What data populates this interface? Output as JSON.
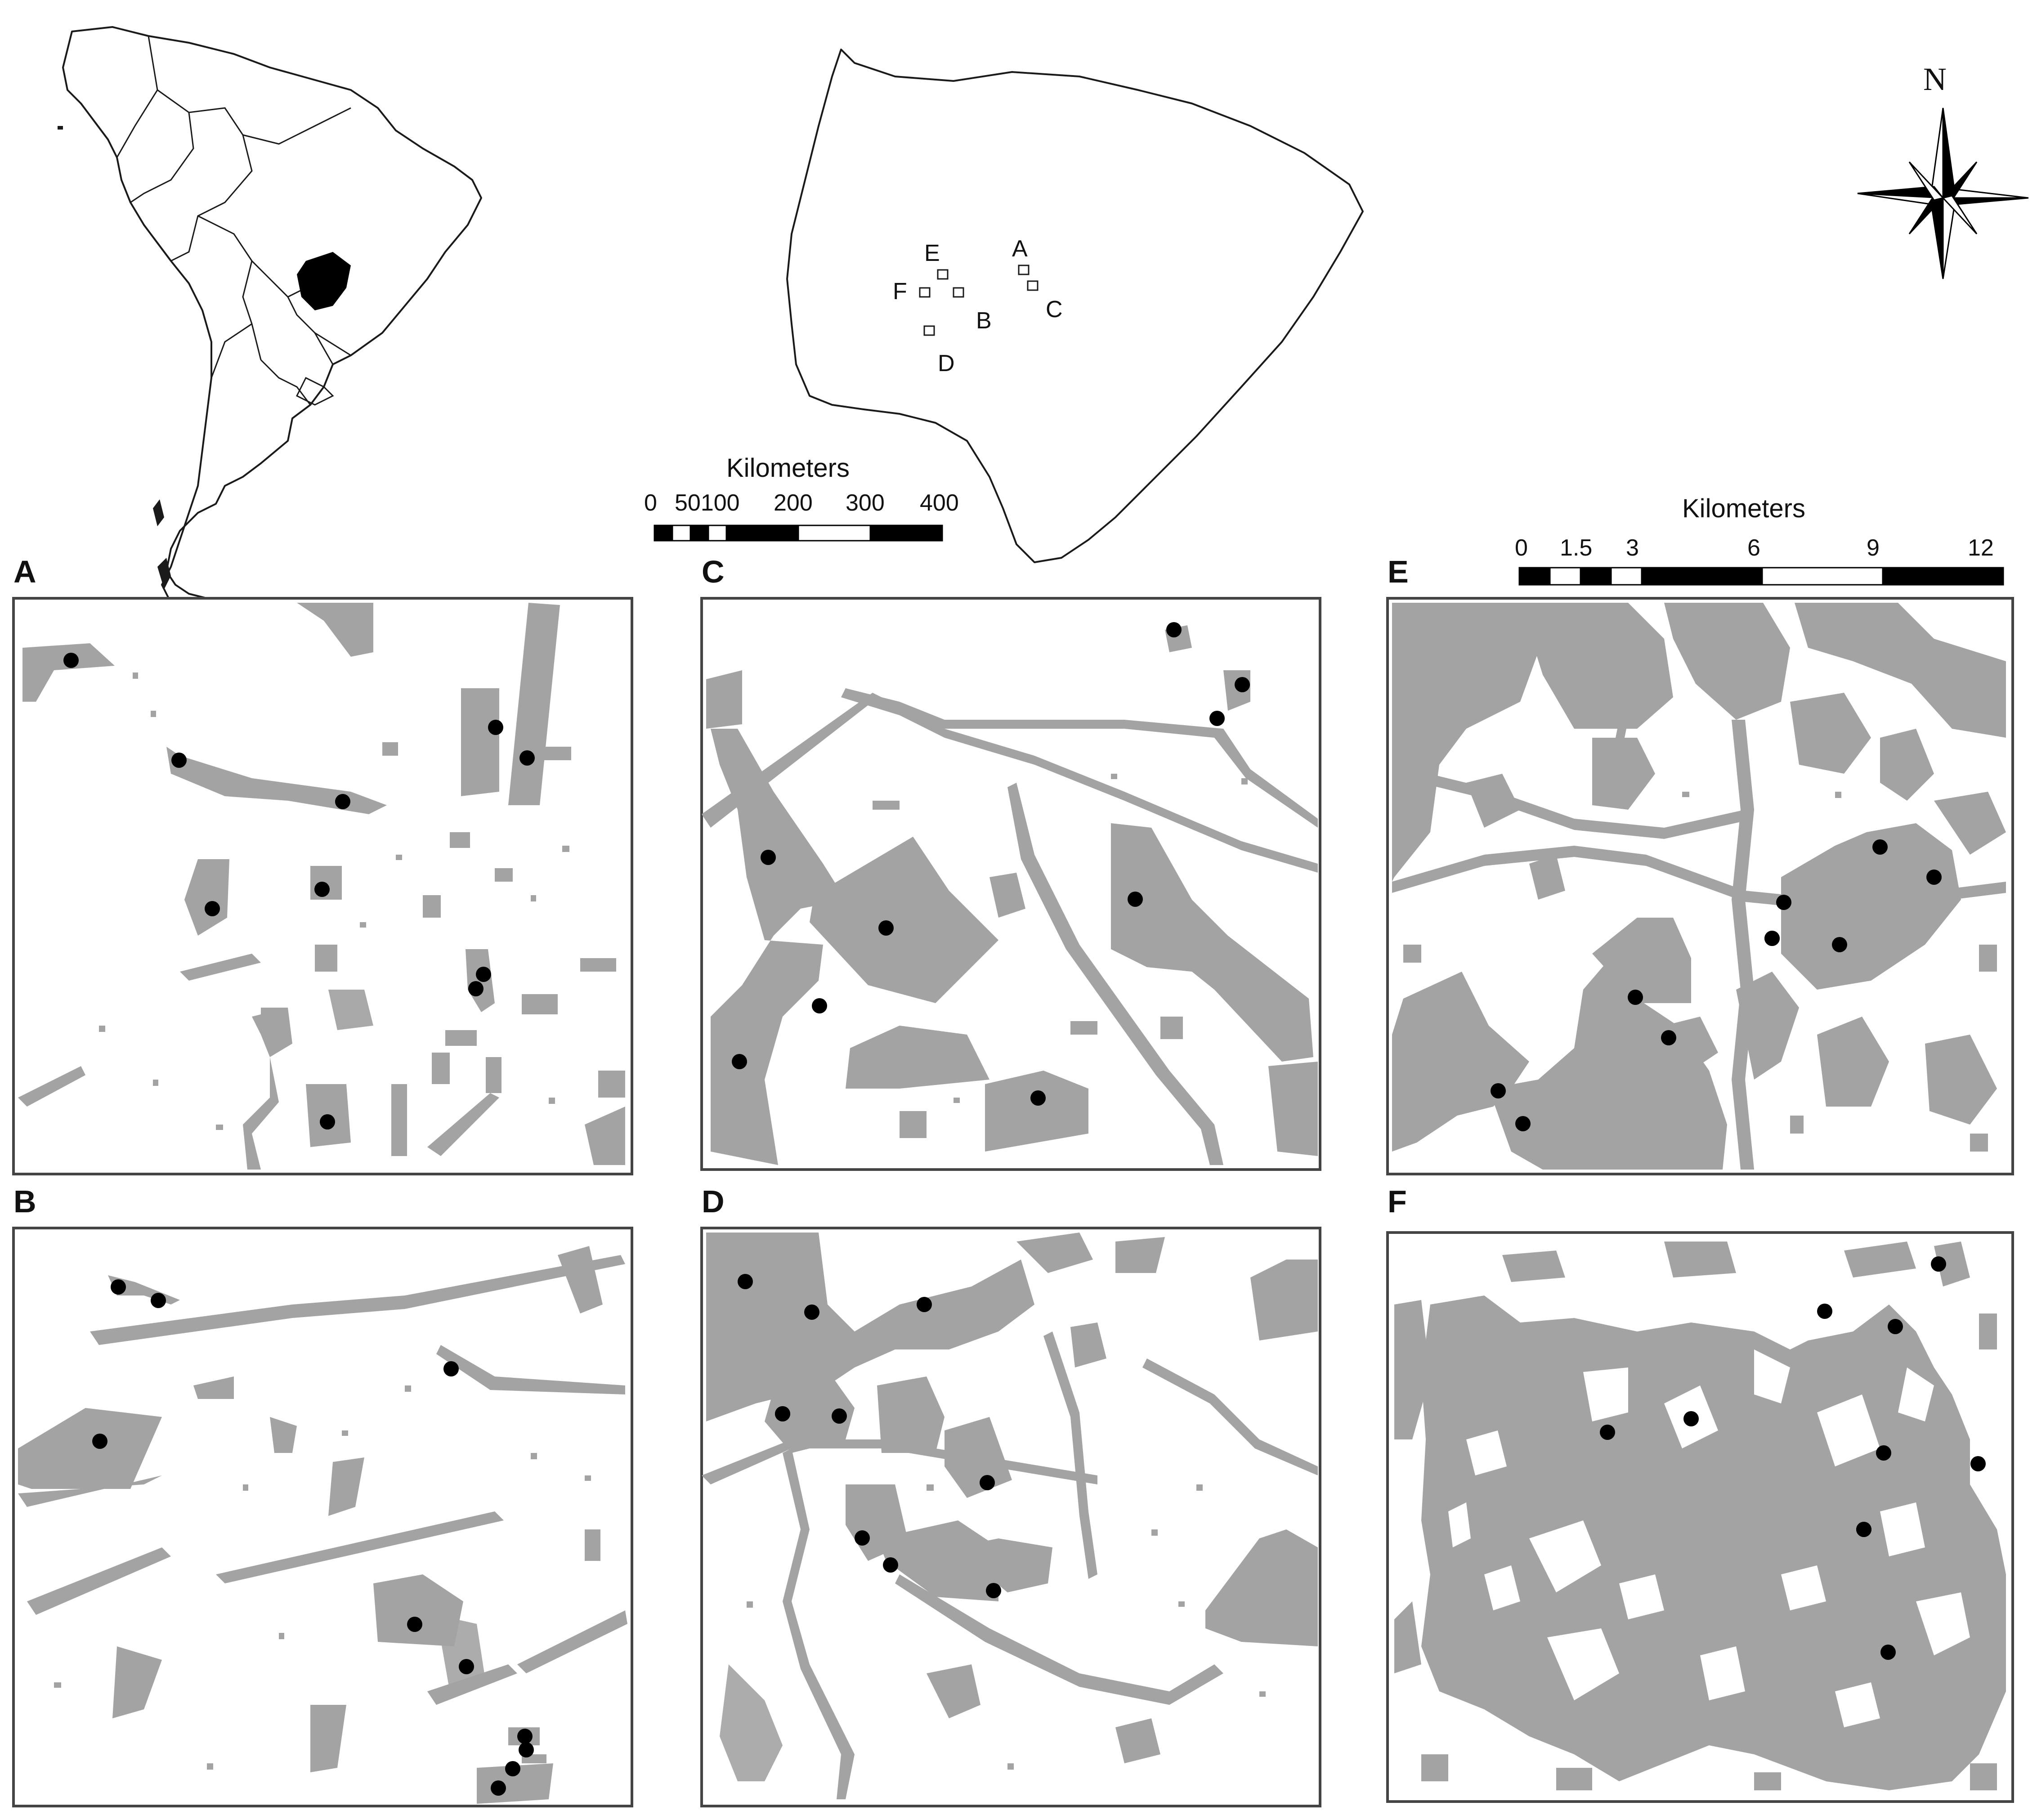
{
  "inset_state": {
    "site_labels": [
      {
        "id": "site-a",
        "label": "A"
      },
      {
        "id": "site-b",
        "label": "B"
      },
      {
        "id": "site-c",
        "label": "C"
      },
      {
        "id": "site-d",
        "label": "D"
      },
      {
        "id": "site-e",
        "label": "E"
      },
      {
        "id": "site-f",
        "label": "F"
      }
    ]
  },
  "state_scale_bar": {
    "title": "Kilometers",
    "ticks": [
      "0",
      "50100",
      "200",
      "300",
      "400"
    ]
  },
  "panel_scale_bar": {
    "title": "Kilometers",
    "ticks": [
      "0",
      "1.5",
      "3",
      "6",
      "9",
      "12"
    ]
  },
  "north_arrow": {
    "label": "N"
  },
  "panels": [
    {
      "id": "A",
      "label": "A",
      "site_count": 10
    },
    {
      "id": "B",
      "label": "B",
      "site_count": 10
    },
    {
      "id": "C",
      "label": "C",
      "site_count": 9
    },
    {
      "id": "D",
      "label": "D",
      "site_count": 10
    },
    {
      "id": "E",
      "label": "E",
      "site_count": 10
    },
    {
      "id": "F",
      "label": "F",
      "site_count": 10
    }
  ],
  "colors": {
    "habitat_patch": "#a3a3a3",
    "background": "#ffffff",
    "highlight_state": "#000000",
    "site_marker": "#000000"
  }
}
